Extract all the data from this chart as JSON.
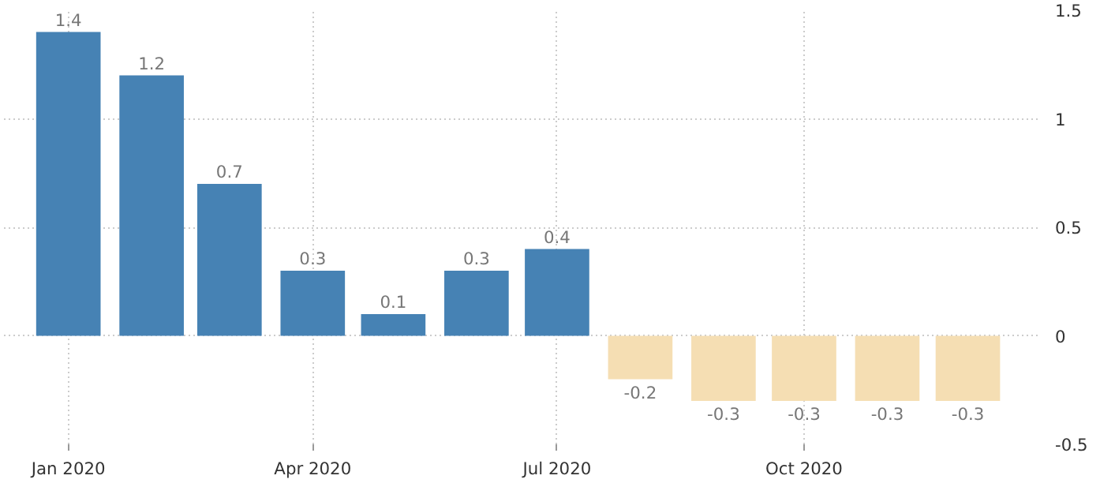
{
  "chart_data": {
    "type": "bar",
    "x": [
      "2020-01",
      "2020-02",
      "2020-03",
      "2020-04",
      "2020-05",
      "2020-06",
      "2020-07",
      "2020-08",
      "2020-09",
      "2020-10",
      "2020-11",
      "2020-12"
    ],
    "values": [
      1.4,
      1.2,
      0.7,
      0.3,
      0.1,
      0.3,
      0.4,
      -0.2,
      -0.3,
      -0.3,
      -0.3,
      -0.3
    ],
    "colors": [
      "#4682b4",
      "#4682b4",
      "#4682b4",
      "#4682b4",
      "#4682b4",
      "#4682b4",
      "#4682b4",
      "#f5deb3",
      "#f5deb3",
      "#f5deb3",
      "#f5deb3",
      "#f5deb3"
    ],
    "data_labels": true,
    "xlim": [
      "2019-12-08",
      "2020-12-27"
    ],
    "xticks": [
      {
        "value": "2020-01",
        "label": "Jan 2020"
      },
      {
        "value": "2020-04",
        "label": "Apr 2020"
      },
      {
        "value": "2020-07",
        "label": "Jul 2020"
      },
      {
        "value": "2020-10",
        "label": "Oct 2020"
      }
    ],
    "ylim": [
      -0.5,
      1.5
    ],
    "yticks": [
      -0.5,
      0,
      0.5,
      1,
      1.5
    ],
    "grid": true
  }
}
